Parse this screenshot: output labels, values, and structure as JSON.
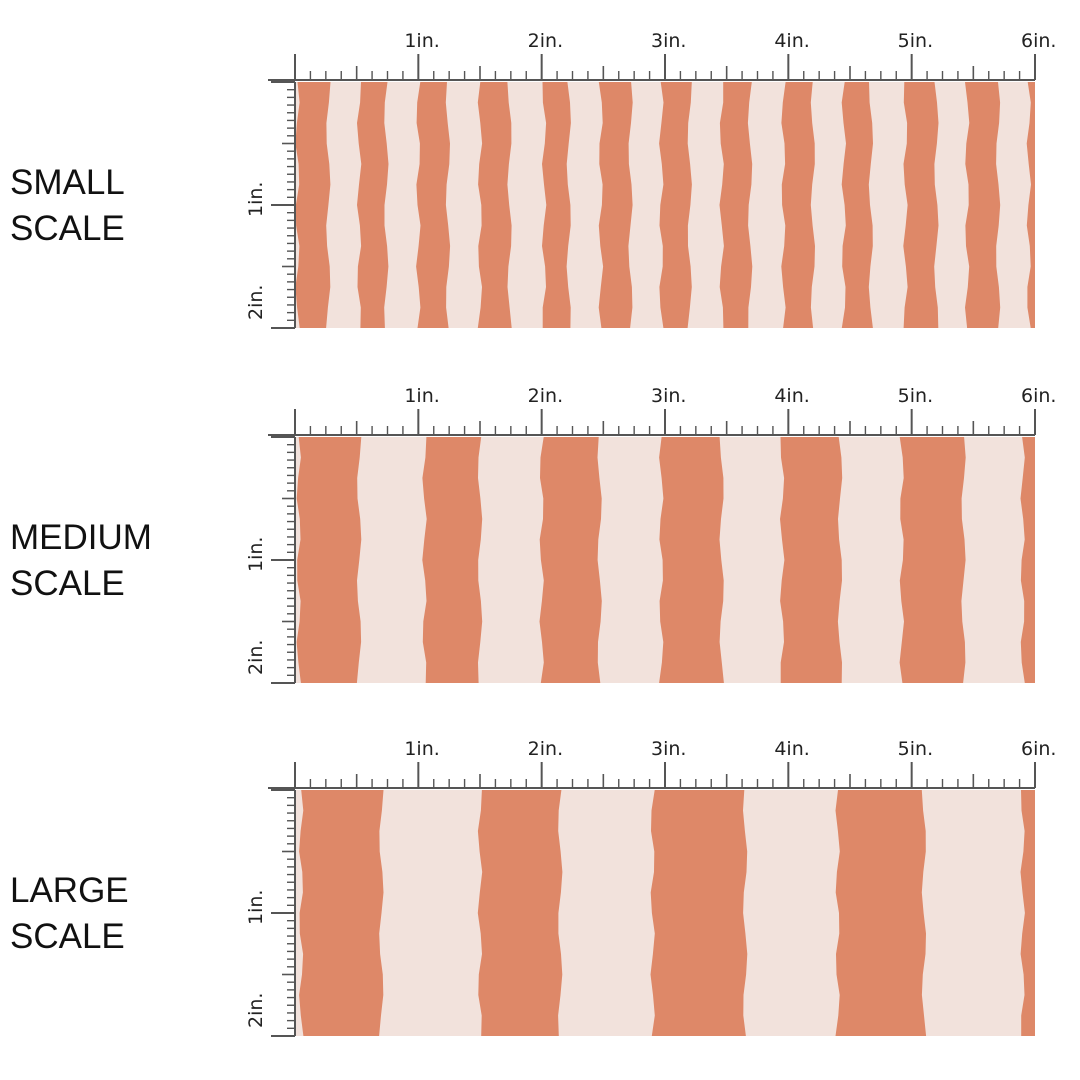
{
  "colors": {
    "stripe": "#DE8868",
    "background": "#F2E2DC",
    "ruler": "#555555",
    "text": "#111111"
  },
  "ruler": {
    "top_labels": [
      "1in.",
      "2in.",
      "3in.",
      "4in.",
      "5in.",
      "6in."
    ],
    "side_labels": [
      "1in.",
      "2in."
    ]
  },
  "swatches": [
    {
      "label_lines": [
        "SMALL",
        "SCALE"
      ],
      "stripes_in_inches": [
        [
          0.02,
          0.27
        ],
        [
          0.52,
          0.74
        ],
        [
          1.0,
          1.24
        ],
        [
          1.5,
          1.74
        ],
        [
          2.02,
          2.22
        ],
        [
          2.48,
          2.72
        ],
        [
          2.97,
          3.2
        ],
        [
          3.46,
          3.69
        ],
        [
          3.96,
          4.2
        ],
        [
          4.45,
          4.67
        ],
        [
          4.95,
          5.2
        ],
        [
          5.45,
          5.7
        ],
        [
          5.95,
          6.0
        ]
      ]
    },
    {
      "label_lines": [
        "MEDIUM",
        "SCALE"
      ],
      "stripes_in_inches": [
        [
          0.03,
          0.52
        ],
        [
          1.05,
          1.5
        ],
        [
          2.0,
          2.47
        ],
        [
          2.97,
          3.46
        ],
        [
          3.95,
          4.42
        ],
        [
          4.92,
          5.42
        ],
        [
          5.9,
          6.0
        ]
      ]
    },
    {
      "label_lines": [
        "LARGE",
        "SCALE"
      ],
      "stripes_in_inches": [
        [
          0.05,
          0.7
        ],
        [
          1.5,
          2.15
        ],
        [
          2.9,
          3.65
        ],
        [
          4.4,
          5.1
        ],
        [
          5.9,
          6.0
        ]
      ]
    }
  ]
}
